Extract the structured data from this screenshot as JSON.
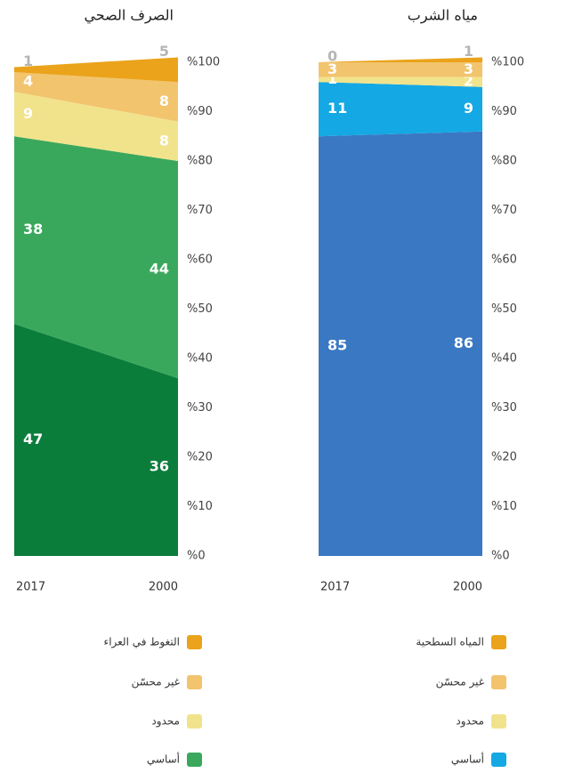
{
  "chart_data": [
    {
      "type": "stacked_area",
      "title": "الصرف الصحي",
      "categories": [
        "2017",
        "2000"
      ],
      "ylim": [
        0,
        100
      ],
      "yticks": [
        {
          "value": 0,
          "label": "%0"
        },
        {
          "value": 10,
          "label": "%10"
        },
        {
          "value": 20,
          "label": "%20"
        },
        {
          "value": 30,
          "label": "%30"
        },
        {
          "value": 40,
          "label": "%40"
        },
        {
          "value": 50,
          "label": "%50"
        },
        {
          "value": 60,
          "label": "%60"
        },
        {
          "value": 70,
          "label": "%70"
        },
        {
          "value": 80,
          "label": "%80"
        },
        {
          "value": 90,
          "label": "%90"
        },
        {
          "value": 100,
          "label": "%100"
        }
      ],
      "series": [
        {
          "color": "#0b7d3b",
          "values": [
            47,
            36
          ]
        },
        {
          "name": "أساسي",
          "color": "#3aa85c",
          "values": [
            38,
            44
          ]
        },
        {
          "name": "محدود",
          "color": "#f1e38c",
          "values": [
            9,
            8
          ]
        },
        {
          "name": "غير محسّن",
          "color": "#f2c46e",
          "values": [
            4,
            8
          ]
        },
        {
          "name": "التغوط في العراء",
          "color": "#eaa31a",
          "values": [
            1,
            5
          ]
        }
      ]
    },
    {
      "type": "stacked_area",
      "title": "مياه الشرب",
      "categories": [
        "2017",
        "2000"
      ],
      "ylim": [
        0,
        100
      ],
      "yticks": [
        {
          "value": 0,
          "label": "%0"
        },
        {
          "value": 10,
          "label": "%10"
        },
        {
          "value": 20,
          "label": "%20"
        },
        {
          "value": 30,
          "label": "%30"
        },
        {
          "value": 40,
          "label": "%40"
        },
        {
          "value": 50,
          "label": "%50"
        },
        {
          "value": 60,
          "label": "%60"
        },
        {
          "value": 70,
          "label": "%70"
        },
        {
          "value": 80,
          "label": "%80"
        },
        {
          "value": 90,
          "label": "%90"
        },
        {
          "value": 100,
          "label": "%100"
        }
      ],
      "series": [
        {
          "color": "#3b78c3",
          "values": [
            85,
            86
          ]
        },
        {
          "name": "أساسي",
          "color": "#14a8e4",
          "values": [
            11,
            9
          ]
        },
        {
          "name": "محدود",
          "color": "#f1e38c",
          "values": [
            1,
            2
          ]
        },
        {
          "name": "غير محسّن",
          "color": "#f2c46e",
          "values": [
            3,
            3
          ]
        },
        {
          "name": "المياه السطحية",
          "color": "#eaa31a",
          "values": [
            0,
            1
          ]
        }
      ]
    }
  ]
}
